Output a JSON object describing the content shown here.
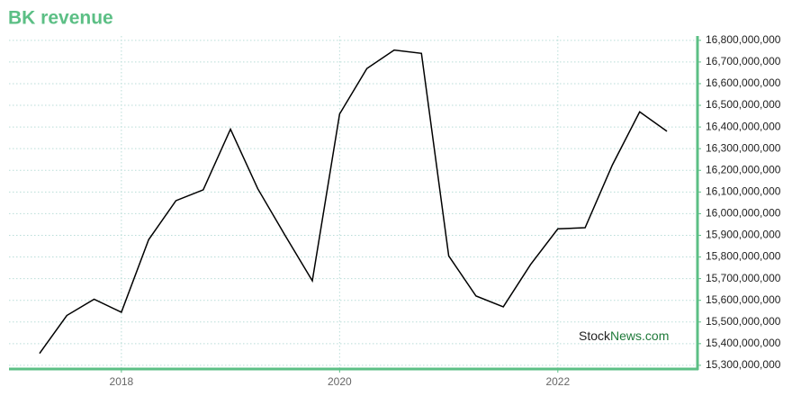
{
  "chart_data": {
    "type": "line",
    "title": "BK revenue",
    "watermark": [
      "Stock",
      "News.com"
    ],
    "x": [
      2017.25,
      2017.5,
      2017.75,
      2018.0,
      2018.25,
      2018.5,
      2018.75,
      2019.0,
      2019.25,
      2019.5,
      2019.75,
      2020.0,
      2020.25,
      2020.5,
      2020.75,
      2021.0,
      2021.25,
      2021.5,
      2021.75,
      2022.0,
      2022.25,
      2022.5,
      2022.75,
      2023.0
    ],
    "series": [
      {
        "name": "BK revenue",
        "color": "#000000",
        "values": [
          15355000000,
          15530000000,
          15605000000,
          15545000000,
          15880000000,
          16060000000,
          16110000000,
          16390000000,
          16115000000,
          15900000000,
          15690000000,
          16460000000,
          16670000000,
          16755000000,
          16740000000,
          15805000000,
          15620000000,
          15570000000,
          15765000000,
          15930000000,
          15935000000,
          16225000000,
          16470000000,
          16380000000
        ]
      }
    ],
    "xlim": [
      2016.97,
      2023.28
    ],
    "xticks": [
      2018,
      2020,
      2022
    ],
    "ylim": [
      15283000000,
      16820000000
    ],
    "yticks": [
      {
        "value": 15300000000,
        "label": "15,300,000,000"
      },
      {
        "value": 15400000000,
        "label": "15,400,000,000"
      },
      {
        "value": 15500000000,
        "label": "15,500,000,000"
      },
      {
        "value": 15600000000,
        "label": "15,600,000,000"
      },
      {
        "value": 15700000000,
        "label": "15,700,000,000"
      },
      {
        "value": 15800000000,
        "label": "15,800,000,000"
      },
      {
        "value": 15900000000,
        "label": "15,900,000,000"
      },
      {
        "value": 16000000000,
        "label": "16,000,000,000"
      },
      {
        "value": 16100000000,
        "label": "16,100,000,000"
      },
      {
        "value": 16200000000,
        "label": "16,200,000,000"
      },
      {
        "value": 16300000000,
        "label": "16,300,000,000"
      },
      {
        "value": 16400000000,
        "label": "16,400,000,000"
      },
      {
        "value": 16500000000,
        "label": "16,500,000,000"
      },
      {
        "value": 16600000000,
        "label": "16,600,000,000"
      },
      {
        "value": 16700000000,
        "label": "16,700,000,000"
      },
      {
        "value": 16800000000,
        "label": "16,800,000,000"
      }
    ],
    "grid": true,
    "axis_color": "#5cbf85"
  }
}
